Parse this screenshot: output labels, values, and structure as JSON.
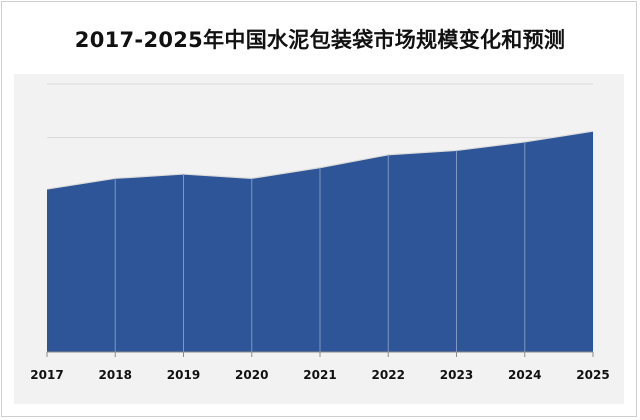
{
  "chart_data": {
    "type": "area",
    "title": "2017-2025年中国水泥包装袋市场规模变化和预测",
    "categories": [
      "2017",
      "2018",
      "2019",
      "2020",
      "2021",
      "2022",
      "2023",
      "2024",
      "2025"
    ],
    "series": [
      {
        "values": [
          0.76,
          0.81,
          0.83,
          0.81,
          0.86,
          0.92,
          0.94,
          0.98,
          1.03
        ]
      }
    ],
    "ylim": [
      0,
      1.25
    ],
    "grid": true,
    "colors": {
      "area": "#2e5597",
      "line": "#dcdcdc",
      "grid": "#d9d9d9",
      "panel": "#f2f2f2"
    }
  }
}
